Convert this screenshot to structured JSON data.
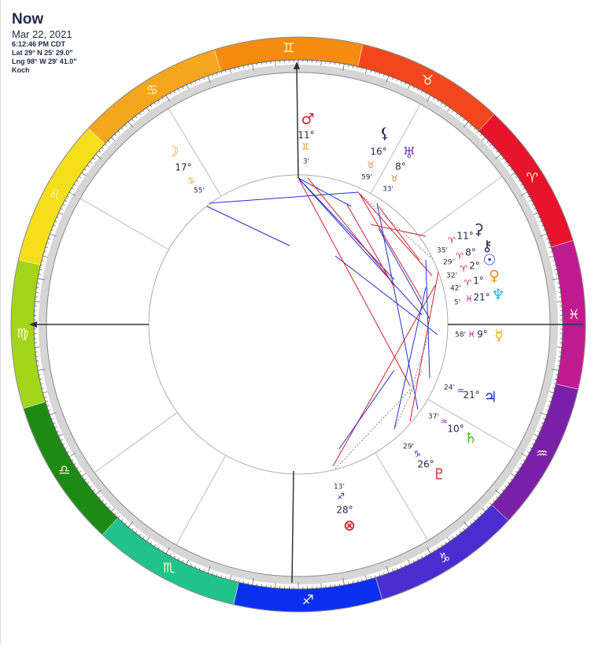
{
  "header": {
    "title": "Now",
    "date": "Mar 22, 2021",
    "time": "6:12:46 PM CDT",
    "lat": "Lat 29° N 25' 29.0\"",
    "lng": "Lng 98° W 29' 41.0\"",
    "system": "Koch"
  },
  "signs": [
    {
      "glyph": "♈︎",
      "color": "#e8142c"
    },
    {
      "glyph": "♉︎",
      "color": "#f4461c"
    },
    {
      "glyph": "♊︎",
      "color": "#f58b0f"
    },
    {
      "glyph": "♋︎",
      "color": "#f6a61c"
    },
    {
      "glyph": "♌︎",
      "color": "#f4df18"
    },
    {
      "glyph": "♍︎",
      "color": "#a5d518"
    },
    {
      "glyph": "♎︎",
      "color": "#1e8a16"
    },
    {
      "glyph": "♏︎",
      "color": "#1fc38b"
    },
    {
      "glyph": "♐︎",
      "color": "#0b2ff0"
    },
    {
      "glyph": "♑︎",
      "color": "#4a2dd0"
    },
    {
      "glyph": "♒︎",
      "color": "#7a20a8"
    },
    {
      "glyph": "♓︎",
      "color": "#c01a90"
    }
  ],
  "planets": [
    {
      "glyph": "♂",
      "degree": "11°",
      "sign": "♊︎",
      "minute": "3'",
      "color": "#d0202a",
      "sign_color": "#e09020"
    },
    {
      "glyph": "⚸",
      "degree": "16°",
      "sign": "♉︎",
      "minute": "59'",
      "color": "#2a2a5a",
      "sign_color": "#e07a20"
    },
    {
      "glyph": "♅",
      "degree": "8°",
      "sign": "♉︎",
      "minute": "33'",
      "color": "#7a40c0",
      "sign_color": "#e07a20"
    },
    {
      "glyph": "☽",
      "degree": "17°",
      "sign": "♋︎",
      "minute": "55'",
      "color": "#f0a020",
      "sign_color": "#f0a020"
    },
    {
      "glyph": "⚳",
      "degree": "11°",
      "sign": "♈︎",
      "minute": "35'",
      "color": "#2a2a5a",
      "sign_color": "#d0203a"
    },
    {
      "glyph": "⚷",
      "degree": "8°",
      "sign": "♈︎",
      "minute": "29'",
      "color": "#2a2a5a",
      "sign_color": "#d0203a"
    },
    {
      "glyph": "☉",
      "degree": "2°",
      "sign": "♈︎",
      "minute": "32'",
      "color": "#1a2ad0",
      "sign_color": "#d0203a"
    },
    {
      "glyph": "♀",
      "degree": "1°",
      "sign": "♈︎",
      "minute": "42'",
      "color": "#f08a10",
      "sign_color": "#d0203a"
    },
    {
      "glyph": "♆",
      "degree": "21°",
      "sign": "♓︎",
      "minute": "5'",
      "color": "#20b8d0",
      "sign_color": "#c01a90"
    },
    {
      "glyph": "☿",
      "degree": "9°",
      "sign": "♓︎",
      "minute": "58'",
      "color": "#e0b010",
      "sign_color": "#c01a90"
    },
    {
      "glyph": "♃",
      "degree": "21°",
      "sign": "♒︎",
      "minute": "24'",
      "color": "#1a2ad0",
      "sign_color": "#7a20a8"
    },
    {
      "glyph": "♄",
      "degree": "10°",
      "sign": "♒︎",
      "minute": "37'",
      "color": "#40c020",
      "sign_color": "#7a20a8"
    },
    {
      "glyph": "♇",
      "degree": "26°",
      "sign": "♑︎",
      "minute": "29'",
      "color": "#d0202a",
      "sign_color": "#2a2ad0"
    },
    {
      "glyph": "⊗",
      "degree": "28°",
      "sign": "♐︎",
      "minute": "13'",
      "color": "#d0202a",
      "sign_color": "#1a2ad0"
    }
  ]
}
